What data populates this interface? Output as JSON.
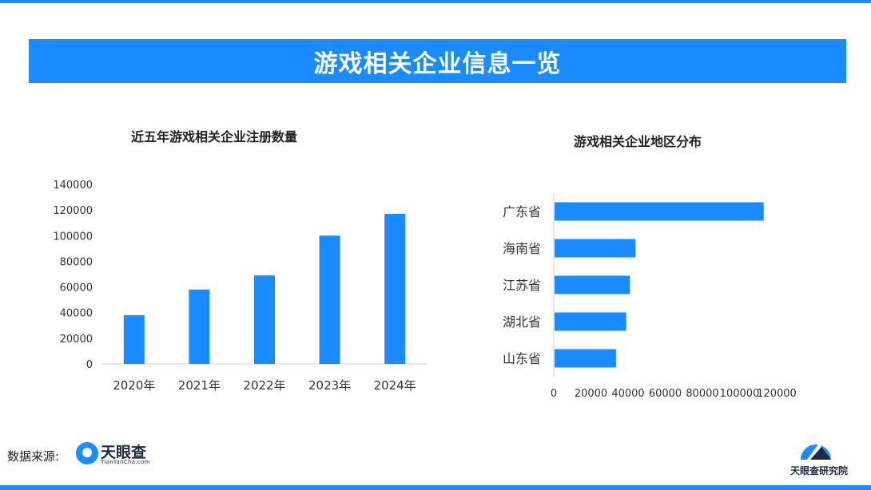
{
  "banner": {
    "title": "游戏相关企业信息一览"
  },
  "chart_data": [
    {
      "type": "bar",
      "title": "近五年游戏相关企业注册数量",
      "categories": [
        "2020年",
        "2021年",
        "2022年",
        "2023年",
        "2024年"
      ],
      "values": [
        38000,
        58000,
        69000,
        100000,
        117000
      ],
      "ylim": [
        0,
        140000
      ],
      "yticks": [
        "0",
        "20000",
        "40000",
        "60000",
        "80000",
        "100000",
        "120000",
        "140000"
      ],
      "grid": false,
      "color": "#1a8cff"
    },
    {
      "type": "bar",
      "orientation": "horizontal",
      "title": "游戏相关企业地区分布",
      "categories": [
        "广东省",
        "海南省",
        "江苏省",
        "湖北省",
        "山东省"
      ],
      "values": [
        113000,
        44000,
        41000,
        39000,
        33500
      ],
      "xlim": [
        0,
        120000
      ],
      "xticks": [
        "0",
        "20000",
        "40000",
        "60000",
        "80000",
        "100000",
        "120000"
      ],
      "grid": false,
      "color": "#1a8cff"
    }
  ],
  "footer": {
    "source_label": "数据来源:",
    "logo_name": "天眼查",
    "logo_sub": "TianYanCha.com",
    "institute": "天眼查研究院"
  }
}
